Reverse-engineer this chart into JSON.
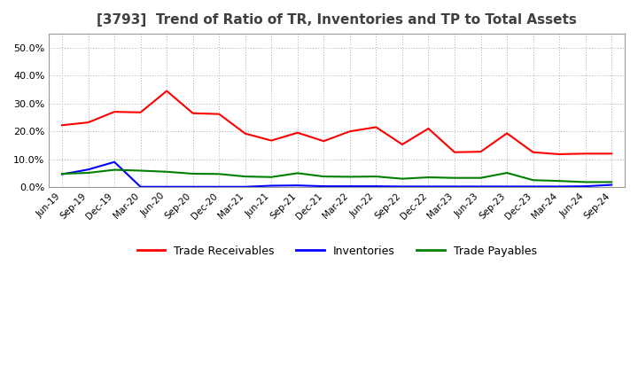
{
  "title": "[3793]  Trend of Ratio of TR, Inventories and TP to Total Assets",
  "x_labels": [
    "Jun-19",
    "Sep-19",
    "Dec-19",
    "Mar-20",
    "Jun-20",
    "Sep-20",
    "Dec-20",
    "Mar-21",
    "Jun-21",
    "Sep-21",
    "Dec-21",
    "Mar-22",
    "Jun-22",
    "Sep-22",
    "Dec-22",
    "Mar-23",
    "Jun-23",
    "Sep-23",
    "Dec-23",
    "Mar-24",
    "Jun-24",
    "Sep-24"
  ],
  "trade_receivables": [
    0.222,
    0.232,
    0.27,
    0.268,
    0.345,
    0.265,
    0.262,
    0.192,
    0.167,
    0.195,
    0.165,
    0.2,
    0.215,
    0.153,
    0.21,
    0.125,
    0.127,
    0.193,
    0.125,
    0.118,
    0.12,
    0.12
  ],
  "inventories": [
    0.046,
    0.063,
    0.09,
    0.001,
    0.001,
    0.001,
    0.001,
    0.001,
    0.005,
    0.006,
    0.003,
    0.003,
    0.003,
    0.002,
    0.002,
    0.002,
    0.002,
    0.002,
    0.002,
    0.002,
    0.003,
    0.008
  ],
  "trade_payables": [
    0.048,
    0.051,
    0.062,
    0.059,
    0.055,
    0.048,
    0.047,
    0.038,
    0.036,
    0.05,
    0.038,
    0.037,
    0.038,
    0.03,
    0.035,
    0.033,
    0.033,
    0.051,
    0.025,
    0.022,
    0.018,
    0.018
  ],
  "tr_color": "#ff0000",
  "inv_color": "#0000ff",
  "tp_color": "#008000",
  "legend_labels": [
    "Trade Receivables",
    "Inventories",
    "Trade Payables"
  ],
  "ylim": [
    0.0,
    0.55
  ],
  "yticks": [
    0.0,
    0.1,
    0.2,
    0.3,
    0.4,
    0.5
  ],
  "background_color": "#ffffff",
  "plot_bg_color": "#ffffff",
  "grid_color": "#aaaaaa",
  "title_color": "#404040",
  "title_fontsize": 11
}
